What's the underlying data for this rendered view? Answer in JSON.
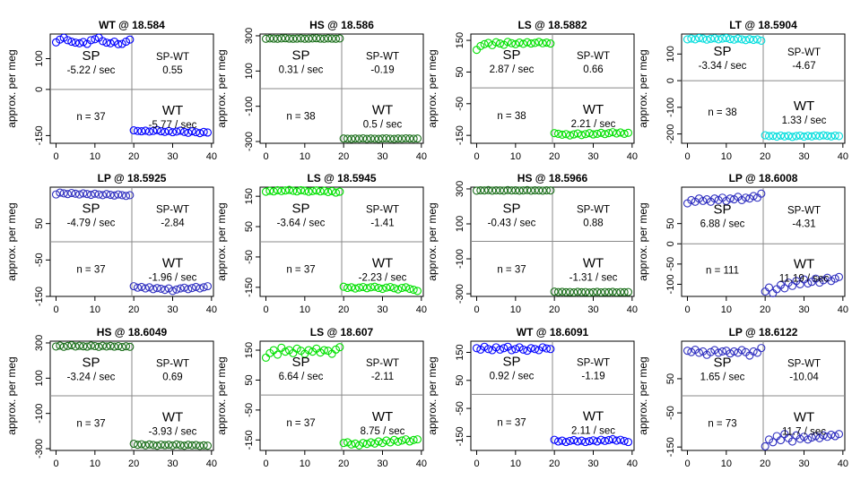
{
  "figure": {
    "ylabel": "approx. per meg",
    "x_ticks": [
      0,
      10,
      20,
      30,
      40
    ]
  },
  "chart_data": [
    {
      "type": "scatter",
      "title": "WT @ 18.584",
      "color": "#0000ff",
      "ylim": [
        -175,
        180
      ],
      "y_ticks": [
        100,
        0,
        -150
      ],
      "sp_label": "SP",
      "sp_rate": "-5.22 / sec",
      "diff_label": "SP-WT",
      "diff_value": "0.55",
      "n_label": "n = 37",
      "wt_label": "WT",
      "wt_rate": "-5.77 / sec",
      "left_x": [
        0,
        1,
        2,
        3,
        4,
        5,
        6,
        7,
        8,
        9,
        10,
        11,
        12,
        13,
        14,
        15,
        16,
        17,
        18,
        19
      ],
      "left_y": [
        153,
        162,
        168,
        160,
        155,
        152,
        150,
        154,
        148,
        160,
        163,
        168,
        157,
        152,
        150,
        155,
        147,
        148,
        155,
        162
      ],
      "right_x": [
        20,
        21,
        22,
        23,
        24,
        25,
        26,
        27,
        28,
        29,
        30,
        31,
        32,
        33,
        34,
        35,
        36,
        37,
        38,
        39
      ],
      "right_y": [
        -133,
        -135,
        -136,
        -134,
        -137,
        -135,
        -132,
        -136,
        -138,
        -135,
        -139,
        -137,
        -134,
        -138,
        -141,
        -136,
        -139,
        -142,
        -138,
        -140
      ]
    },
    {
      "type": "scatter",
      "title": "HS @ 18.586",
      "color": "#1a6e1a",
      "ylim": [
        -310,
        310
      ],
      "y_ticks": [
        300,
        100,
        -100,
        -300
      ],
      "sp_label": "SP",
      "sp_rate": "0.31 / sec",
      "diff_label": "SP-WT",
      "diff_value": "-0.19",
      "n_label": "n = 38",
      "wt_label": "WT",
      "wt_rate": "0.5 / sec",
      "left_x": [
        0,
        1,
        2,
        3,
        4,
        5,
        6,
        7,
        8,
        9,
        10,
        11,
        12,
        13,
        14,
        15,
        16,
        17,
        18,
        19
      ],
      "left_y": [
        283,
        285,
        284,
        283,
        285,
        286,
        284,
        283,
        284,
        285,
        283,
        284,
        285,
        286,
        284,
        283,
        285,
        284,
        283,
        285
      ],
      "right_x": [
        20,
        21,
        22,
        23,
        24,
        25,
        26,
        27,
        28,
        29,
        30,
        31,
        32,
        33,
        34,
        35,
        36,
        37,
        38,
        39
      ],
      "right_y": [
        -283,
        -284,
        -285,
        -283,
        -284,
        -282,
        -285,
        -283,
        -284,
        -285,
        -283,
        -282,
        -284,
        -285,
        -283,
        -284,
        -282,
        -283,
        -284,
        -283
      ]
    },
    {
      "type": "scatter",
      "title": "LS @ 18.5882",
      "color": "#00e000",
      "ylim": [
        -175,
        170
      ],
      "y_ticks": [
        150,
        50,
        -50,
        -150
      ],
      "sp_label": "SP",
      "sp_rate": "2.87 / sec",
      "diff_label": "SP-WT",
      "diff_value": "0.66",
      "n_label": "n = 38",
      "wt_label": "WT",
      "wt_rate": "2.21 / sec",
      "left_x": [
        0,
        1,
        2,
        3,
        4,
        5,
        6,
        7,
        8,
        9,
        10,
        11,
        12,
        13,
        14,
        15,
        16,
        17,
        18,
        19
      ],
      "left_y": [
        120,
        132,
        138,
        142,
        135,
        144,
        140,
        136,
        145,
        141,
        138,
        143,
        139,
        144,
        140,
        142,
        145,
        141,
        143,
        140
      ],
      "right_x": [
        20,
        21,
        22,
        23,
        24,
        25,
        26,
        27,
        28,
        29,
        30,
        31,
        32,
        33,
        34,
        35,
        36,
        37,
        38,
        39
      ],
      "right_y": [
        -143,
        -145,
        -148,
        -146,
        -150,
        -147,
        -144,
        -149,
        -146,
        -143,
        -147,
        -145,
        -142,
        -146,
        -143,
        -140,
        -144,
        -141,
        -145,
        -142
      ]
    },
    {
      "type": "scatter",
      "title": "LT @ 18.5904",
      "color": "#00dddd",
      "ylim": [
        -235,
        175
      ],
      "y_ticks": [
        100,
        0,
        -100,
        -200
      ],
      "sp_label": "SP",
      "sp_rate": "-3.34 / sec",
      "diff_label": "SP-WT",
      "diff_value": "-4.67",
      "n_label": "n = 38",
      "wt_label": "WT",
      "wt_rate": "1.33 / sec",
      "left_x": [
        0,
        1,
        2,
        3,
        4,
        5,
        6,
        7,
        8,
        9,
        10,
        11,
        12,
        13,
        14,
        15,
        16,
        17,
        18,
        19
      ],
      "left_y": [
        155,
        158,
        155,
        160,
        158,
        154,
        157,
        159,
        155,
        158,
        160,
        156,
        154,
        158,
        155,
        152,
        156,
        153,
        155,
        150
      ],
      "right_x": [
        20,
        21,
        22,
        23,
        24,
        25,
        26,
        27,
        28,
        29,
        30,
        31,
        32,
        33,
        34,
        35,
        36,
        37,
        38,
        39
      ],
      "right_y": [
        -205,
        -208,
        -207,
        -210,
        -206,
        -209,
        -207,
        -211,
        -208,
        -206,
        -210,
        -207,
        -209,
        -206,
        -208,
        -205,
        -207,
        -209,
        -206,
        -208
      ]
    },
    {
      "type": "scatter",
      "title": "LP @ 18.5925",
      "color": "#3030c0",
      "ylim": [
        -150,
        150
      ],
      "y_ticks": [
        50,
        -50,
        -150
      ],
      "sp_label": "SP",
      "sp_rate": "-4.79 / sec",
      "diff_label": "SP-WT",
      "diff_value": "-2.84",
      "n_label": "n = 37",
      "wt_label": "WT",
      "wt_rate": "-1.96 / sec",
      "left_x": [
        0,
        1,
        2,
        3,
        4,
        5,
        6,
        7,
        8,
        9,
        10,
        11,
        12,
        13,
        14,
        15,
        16,
        17,
        18,
        19
      ],
      "left_y": [
        130,
        135,
        133,
        131,
        134,
        132,
        130,
        133,
        131,
        129,
        132,
        130,
        128,
        131,
        129,
        127,
        130,
        128,
        126,
        128
      ],
      "right_x": [
        20,
        21,
        22,
        23,
        24,
        25,
        26,
        27,
        28,
        29,
        30,
        31,
        32,
        33,
        34,
        35,
        36,
        37,
        38,
        39
      ],
      "right_y": [
        -122,
        -126,
        -124,
        -128,
        -125,
        -130,
        -127,
        -129,
        -132,
        -128,
        -135,
        -131,
        -128,
        -126,
        -130,
        -127,
        -124,
        -128,
        -125,
        -122
      ]
    },
    {
      "type": "scatter",
      "title": "LS @ 18.5945",
      "color": "#00e000",
      "ylim": [
        -180,
        180
      ],
      "y_ticks": [
        150,
        50,
        -50,
        -150
      ],
      "sp_label": "SP",
      "sp_rate": "-3.64 / sec",
      "diff_label": "SP-WT",
      "diff_value": "-1.41",
      "n_label": "n = 37",
      "wt_label": "WT",
      "wt_rate": "-2.23 / sec",
      "left_x": [
        0,
        1,
        2,
        3,
        4,
        5,
        6,
        7,
        8,
        9,
        10,
        11,
        12,
        13,
        14,
        15,
        16,
        17,
        18,
        19
      ],
      "left_y": [
        165,
        168,
        166,
        170,
        167,
        169,
        171,
        168,
        166,
        170,
        168,
        165,
        167,
        169,
        166,
        168,
        164,
        167,
        162,
        165
      ],
      "right_x": [
        20,
        21,
        22,
        23,
        24,
        25,
        26,
        27,
        28,
        29,
        30,
        31,
        32,
        33,
        34,
        35,
        36,
        37,
        38,
        39
      ],
      "right_y": [
        -148,
        -152,
        -150,
        -154,
        -151,
        -149,
        -153,
        -150,
        -148,
        -152,
        -155,
        -151,
        -149,
        -153,
        -157,
        -152,
        -150,
        -155,
        -158,
        -162
      ]
    },
    {
      "type": "scatter",
      "title": "HS @ 18.5966",
      "color": "#1a6e1a",
      "ylim": [
        -315,
        310
      ],
      "y_ticks": [
        300,
        100,
        -100,
        -300
      ],
      "sp_label": "SP",
      "sp_rate": "-0.43 / sec",
      "diff_label": "SP-WT",
      "diff_value": "0.88",
      "n_label": "n = 37",
      "wt_label": "WT",
      "wt_rate": "-1.31 / sec",
      "left_x": [
        0,
        1,
        2,
        3,
        4,
        5,
        6,
        7,
        8,
        9,
        10,
        11,
        12,
        13,
        14,
        15,
        16,
        17,
        18,
        19
      ],
      "left_y": [
        290,
        292,
        291,
        293,
        290,
        292,
        291,
        290,
        293,
        291,
        292,
        290,
        291,
        293,
        290,
        292,
        291,
        290,
        292,
        291
      ],
      "right_x": [
        20,
        21,
        22,
        23,
        24,
        25,
        26,
        27,
        28,
        29,
        30,
        31,
        32,
        33,
        34,
        35,
        36,
        37,
        38,
        39
      ],
      "right_y": [
        -288,
        -290,
        -289,
        -291,
        -290,
        -292,
        -289,
        -291,
        -290,
        -293,
        -291,
        -289,
        -292,
        -290,
        -291,
        -289,
        -292,
        -290,
        -291,
        -290
      ]
    },
    {
      "type": "scatter",
      "title": "LP @ 18.6008",
      "color": "#3030c0",
      "ylim": [
        -130,
        140
      ],
      "y_ticks": [
        50,
        0,
        -50,
        -100
      ],
      "sp_label": "SP",
      "sp_rate": "6.88 / sec",
      "diff_label": "SP-WT",
      "diff_value": "-4.31",
      "n_label": "n = 111",
      "wt_label": "WT",
      "wt_rate": "11.19 / sec",
      "left_x": [
        0,
        1,
        2,
        3,
        4,
        5,
        6,
        7,
        8,
        9,
        10,
        11,
        12,
        13,
        14,
        15,
        16,
        17,
        18,
        19
      ],
      "left_y": [
        100,
        108,
        104,
        112,
        106,
        110,
        104,
        112,
        108,
        114,
        106,
        112,
        110,
        116,
        108,
        114,
        112,
        118,
        114,
        124
      ],
      "right_x": [
        20,
        21,
        22,
        23,
        24,
        25,
        26,
        27,
        28,
        29,
        30,
        31,
        32,
        33,
        34,
        35,
        36,
        37,
        38,
        39
      ],
      "right_y": [
        -118,
        -108,
        -122,
        -112,
        -102,
        -110,
        -96,
        -104,
        -92,
        -100,
        -88,
        -98,
        -94,
        -86,
        -96,
        -90,
        -84,
        -92,
        -86,
        -82
      ]
    },
    {
      "type": "scatter",
      "title": "HS @ 18.6049",
      "color": "#1a6e1a",
      "ylim": [
        -310,
        310
      ],
      "y_ticks": [
        300,
        100,
        -100,
        -300
      ],
      "sp_label": "SP",
      "sp_rate": "-3.24 / sec",
      "diff_label": "SP-WT",
      "diff_value": "0.69",
      "n_label": "n = 37",
      "wt_label": "WT",
      "wt_rate": "-3.93 / sec",
      "left_x": [
        0,
        1,
        2,
        3,
        4,
        5,
        6,
        7,
        8,
        9,
        10,
        11,
        12,
        13,
        14,
        15,
        16,
        17,
        18,
        19
      ],
      "left_y": [
        280,
        285,
        278,
        283,
        287,
        280,
        284,
        281,
        279,
        285,
        282,
        278,
        284,
        280,
        283,
        279,
        282,
        277,
        281,
        278
      ],
      "right_x": [
        20,
        21,
        22,
        23,
        24,
        25,
        26,
        27,
        28,
        29,
        30,
        31,
        32,
        33,
        34,
        35,
        36,
        37,
        38,
        39
      ],
      "right_y": [
        -272,
        -278,
        -275,
        -281,
        -276,
        -279,
        -283,
        -277,
        -280,
        -278,
        -282,
        -276,
        -280,
        -283,
        -278,
        -281,
        -279,
        -284,
        -281,
        -283
      ]
    },
    {
      "type": "scatter",
      "title": "LS @ 18.607",
      "color": "#00e000",
      "ylim": [
        -185,
        180
      ],
      "y_ticks": [
        150,
        50,
        -50,
        -150
      ],
      "sp_label": "SP",
      "sp_rate": "6.64 / sec",
      "diff_label": "SP-WT",
      "diff_value": "-2.11",
      "n_label": "n = 37",
      "wt_label": "WT",
      "wt_rate": "8.75 / sec",
      "left_x": [
        0,
        1,
        2,
        3,
        4,
        5,
        6,
        7,
        8,
        9,
        10,
        11,
        12,
        13,
        14,
        15,
        16,
        17,
        18,
        19
      ],
      "left_y": [
        125,
        140,
        150,
        135,
        158,
        145,
        150,
        140,
        155,
        148,
        138,
        150,
        145,
        155,
        142,
        150,
        148,
        138,
        152,
        160
      ],
      "right_x": [
        20,
        21,
        22,
        23,
        24,
        25,
        26,
        27,
        28,
        29,
        30,
        31,
        32,
        33,
        34,
        35,
        36,
        37,
        38,
        39
      ],
      "right_y": [
        -160,
        -158,
        -165,
        -162,
        -168,
        -160,
        -163,
        -158,
        -162,
        -155,
        -160,
        -152,
        -158,
        -150,
        -156,
        -152,
        -148,
        -155,
        -150,
        -148
      ]
    },
    {
      "type": "scatter",
      "title": "WT @ 18.6091",
      "color": "#0000ff",
      "ylim": [
        -200,
        190
      ],
      "y_ticks": [
        150,
        50,
        -50,
        -150
      ],
      "sp_label": "SP",
      "sp_rate": "0.92 / sec",
      "diff_label": "SP-WT",
      "diff_value": "-1.19",
      "n_label": "n = 37",
      "wt_label": "WT",
      "wt_rate": "2.11 / sec",
      "left_x": [
        0,
        1,
        2,
        3,
        4,
        5,
        6,
        7,
        8,
        9,
        10,
        11,
        12,
        13,
        14,
        15,
        16,
        17,
        18,
        19
      ],
      "left_y": [
        165,
        160,
        170,
        162,
        158,
        168,
        160,
        165,
        170,
        158,
        162,
        168,
        160,
        156,
        165,
        162,
        158,
        168,
        164,
        162
      ],
      "right_x": [
        20,
        21,
        22,
        23,
        24,
        25,
        26,
        27,
        28,
        29,
        30,
        31,
        32,
        33,
        34,
        35,
        36,
        37,
        38,
        39
      ],
      "right_y": [
        -162,
        -168,
        -165,
        -170,
        -166,
        -163,
        -168,
        -165,
        -170,
        -167,
        -164,
        -168,
        -162,
        -166,
        -163,
        -160,
        -165,
        -162,
        -166,
        -170
      ]
    },
    {
      "type": "scatter",
      "title": "LP @ 18.6122",
      "color": "#3030c0",
      "ylim": [
        -160,
        160
      ],
      "y_ticks": [
        50,
        -50,
        -150
      ],
      "sp_label": "SP",
      "sp_rate": "1.65 / sec",
      "diff_label": "SP-WT",
      "diff_value": "-10.04",
      "n_label": "n = 73",
      "wt_label": "WT",
      "wt_rate": "11.7 / sec",
      "left_x": [
        0,
        1,
        2,
        3,
        4,
        5,
        6,
        7,
        8,
        9,
        10,
        11,
        12,
        13,
        14,
        15,
        16,
        17,
        18,
        19
      ],
      "left_y": [
        132,
        128,
        135,
        126,
        130,
        120,
        128,
        134,
        126,
        130,
        132,
        124,
        130,
        126,
        134,
        128,
        118,
        130,
        126,
        140
      ],
      "right_x": [
        20,
        21,
        22,
        23,
        24,
        25,
        26,
        27,
        28,
        29,
        30,
        31,
        32,
        33,
        34,
        35,
        36,
        37,
        38,
        39
      ],
      "right_y": [
        -148,
        -128,
        -136,
        -118,
        -130,
        -112,
        -124,
        -134,
        -116,
        -126,
        -120,
        -128,
        -122,
        -118,
        -124,
        -116,
        -120,
        -114,
        -118,
        -112
      ]
    }
  ]
}
